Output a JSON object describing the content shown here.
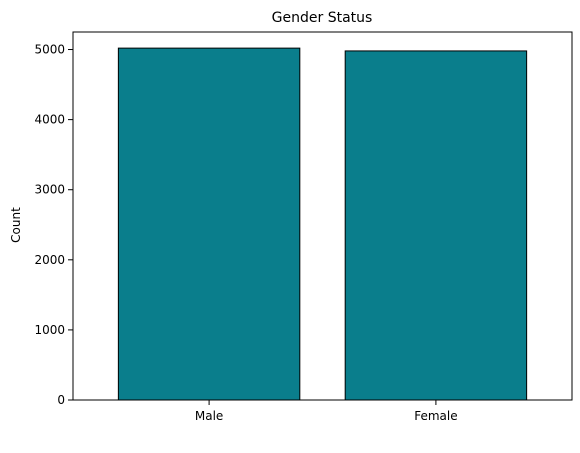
{
  "chart_data": {
    "type": "bar",
    "title": "Gender Status",
    "xlabel": "",
    "ylabel": "Count",
    "categories": [
      "Male",
      "Female"
    ],
    "values": [
      5020,
      4980
    ],
    "ylim": [
      0,
      5250
    ],
    "yticks": [
      0,
      1000,
      2000,
      3000,
      4000,
      5000
    ],
    "grid": false,
    "legend": "none",
    "bar_color": "#0a7e8c",
    "edge_color": "#000000"
  }
}
